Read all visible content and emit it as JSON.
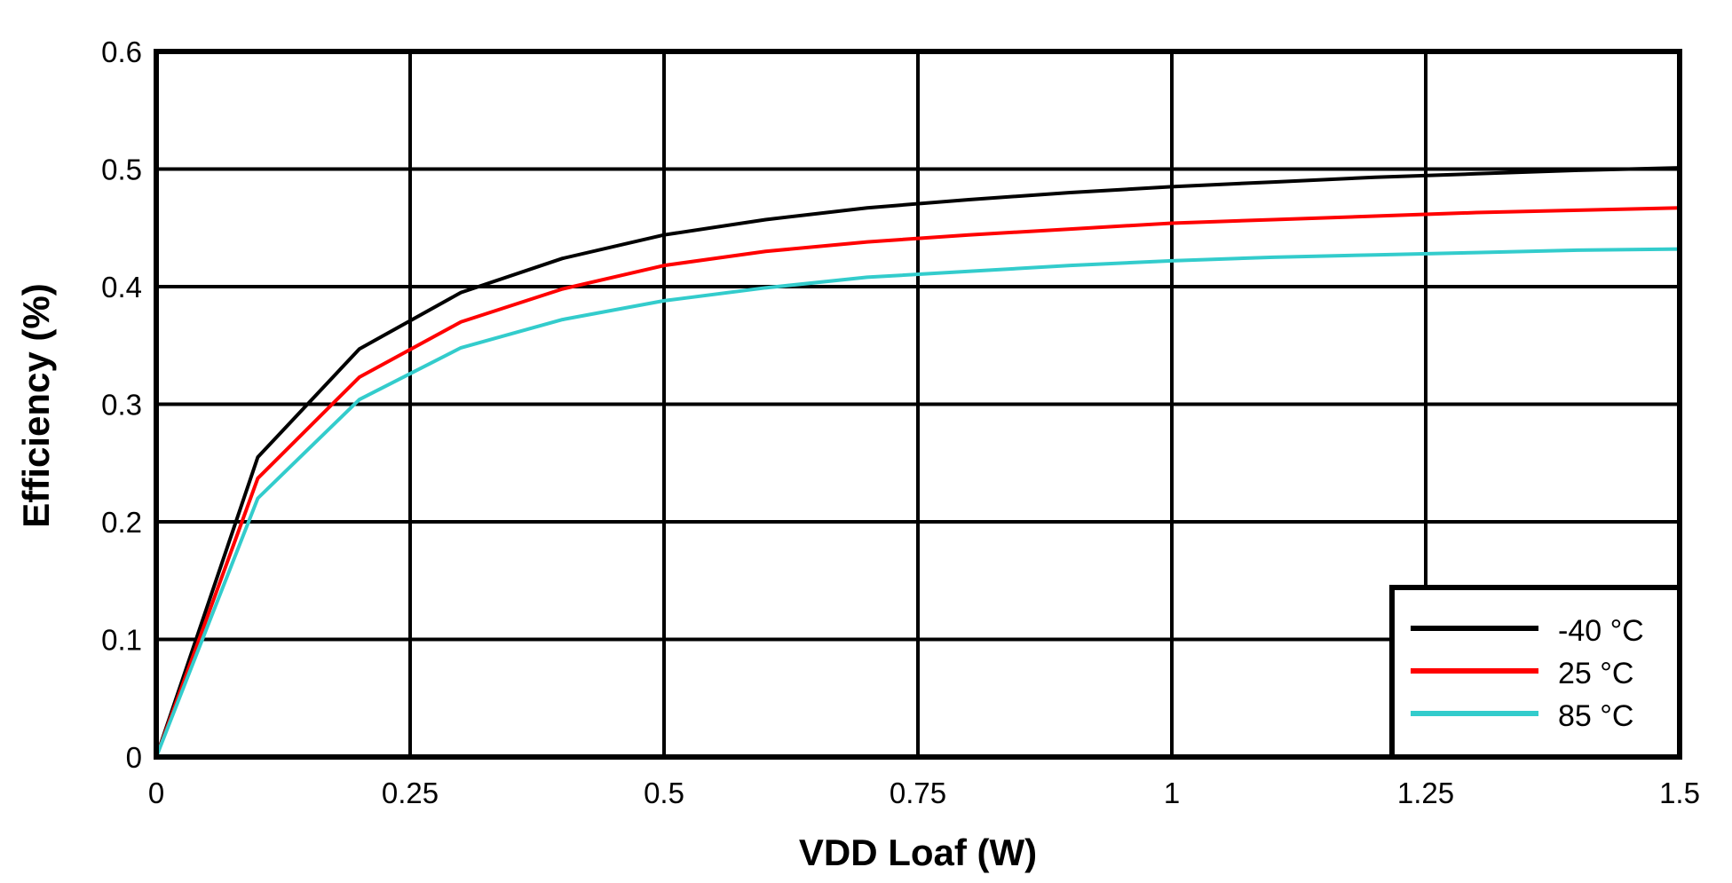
{
  "chart_data": {
    "type": "line",
    "xlabel": "VDD Loaf (W)",
    "ylabel": "Efficiency (%)",
    "xlim": [
      0,
      1.5
    ],
    "ylim": [
      0,
      0.6
    ],
    "xticks": [
      "0",
      "0.25",
      "0.5",
      "0.75",
      "1",
      "1.25",
      "1.5"
    ],
    "xtick_values": [
      0,
      0.25,
      0.5,
      0.75,
      1,
      1.25,
      1.5
    ],
    "yticks": [
      "0",
      "0.1",
      "0.2",
      "0.3",
      "0.4",
      "0.5",
      "0.6"
    ],
    "ytick_values": [
      0,
      0.1,
      0.2,
      0.3,
      0.4,
      0.5,
      0.6
    ],
    "grid": true,
    "legend_position": "bottom-right",
    "x": [
      0,
      0.1,
      0.2,
      0.3,
      0.4,
      0.5,
      0.6,
      0.7,
      0.8,
      0.9,
      1.0,
      1.1,
      1.2,
      1.3,
      1.4,
      1.5
    ],
    "series": [
      {
        "name": "-40 °C",
        "color": "#000000",
        "values": [
          0,
          0.255,
          0.347,
          0.395,
          0.424,
          0.444,
          0.457,
          0.467,
          0.474,
          0.48,
          0.485,
          0.489,
          0.493,
          0.496,
          0.499,
          0.501
        ]
      },
      {
        "name": "25 °C",
        "color": "#ff0000",
        "values": [
          0,
          0.237,
          0.323,
          0.37,
          0.398,
          0.418,
          0.43,
          0.438,
          0.444,
          0.449,
          0.454,
          0.457,
          0.46,
          0.463,
          0.465,
          0.467
        ]
      },
      {
        "name": "85 °C",
        "color": "#33cccc",
        "values": [
          0,
          0.22,
          0.304,
          0.348,
          0.372,
          0.388,
          0.399,
          0.408,
          0.413,
          0.418,
          0.422,
          0.425,
          0.427,
          0.429,
          0.431,
          0.432
        ]
      }
    ]
  }
}
